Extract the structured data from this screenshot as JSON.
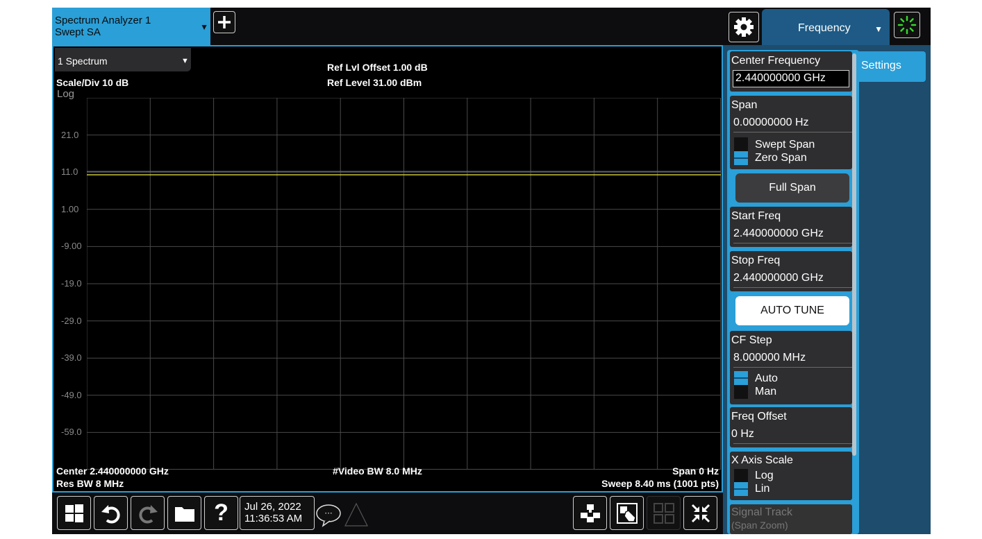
{
  "window": {
    "title_line1": "Spectrum Analyzer 1",
    "title_line2": "Swept SA"
  },
  "menu": {
    "label": "Frequency"
  },
  "graph": {
    "window_label": "1 Spectrum",
    "scale": "Scale/Div 10 dB",
    "scale_type": "Log",
    "ref_offset": "Ref Lvl Offset 1.00 dB",
    "ref_level": "Ref Level 31.00 dBm",
    "yticks": [
      "21.0",
      "11.0",
      "1.00",
      "-9.00",
      "-19.0",
      "-29.0",
      "-39.0",
      "-49.0",
      "-59.0"
    ],
    "center": "Center 2.440000000 GHz",
    "res_bw": "Res BW 8 MHz",
    "video_bw": "#Video BW 8.0 MHz",
    "span": "Span 0 Hz",
    "sweep": "Sweep 8.40 ms (1001 pts)",
    "trace_color": "#c8c840",
    "threshold_color": "#7e7eb4"
  },
  "chart_data": {
    "type": "line",
    "y_range": [
      -69,
      31
    ],
    "y_unit": "dBm",
    "series": [
      {
        "values": [
          10.3,
          10.3
        ]
      }
    ],
    "reference_line": 11.2
  },
  "taskbar": {
    "date": "Jul 26, 2022",
    "time": "11:36:53 AM"
  },
  "panel": {
    "settings_tab": "Settings",
    "center_freq": {
      "label": "Center Frequency",
      "value": "2.440000000 GHz"
    },
    "span": {
      "label": "Span",
      "value": "0.00000000 Hz",
      "opt1": "Swept Span",
      "opt2": "Zero Span"
    },
    "full_span": "Full Span",
    "start_freq": {
      "label": "Start Freq",
      "value": "2.440000000 GHz"
    },
    "stop_freq": {
      "label": "Stop Freq",
      "value": "2.440000000 GHz"
    },
    "auto_tune": "AUTO TUNE",
    "cf_step": {
      "label": "CF Step",
      "value": "8.000000 MHz",
      "opt1": "Auto",
      "opt2": "Man"
    },
    "freq_offset": {
      "label": "Freq Offset",
      "value": "0 Hz"
    },
    "x_axis_scale": {
      "label": "X Axis Scale",
      "opt1": "Log",
      "opt2": "Lin"
    },
    "signal_track": {
      "line1": "Signal Track",
      "line2": "(Span Zoom)"
    }
  }
}
